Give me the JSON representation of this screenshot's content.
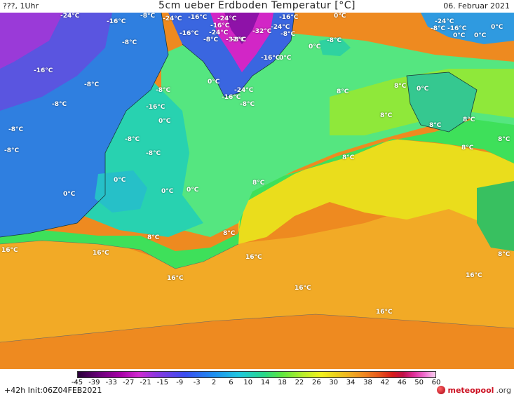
{
  "header": {
    "left": "???, 1Uhr",
    "title": "5cm ueber Erdboden Temperatur [°C]",
    "date": "06. Februar 2021"
  },
  "colors": {
    "water_deep_cold": "#1a56c8",
    "ocean_green": "#2ee070",
    "ocean_yellow": "#e8e020",
    "ocean_orange": "#f0a020",
    "land_purple": "#9030d0",
    "greenland_magenta": "#d020c0"
  },
  "labels": [
    {
      "text": "-24°C"
    },
    {
      "text": "-8°C"
    },
    {
      "text": "-24°C"
    },
    {
      "text": "-16°C"
    },
    {
      "text": "-16°C"
    },
    {
      "text": "-16°C"
    },
    {
      "text": "-24°C"
    },
    {
      "text": "-16°C"
    },
    {
      "text": "-24°C"
    },
    {
      "text": "-16°C"
    },
    {
      "text": "-8°C"
    },
    {
      "text": "-32°C"
    },
    {
      "text": "-8°C"
    },
    {
      "text": "-24°C"
    },
    {
      "text": "-8°C"
    },
    {
      "text": "0°C"
    },
    {
      "text": "-8°C"
    },
    {
      "text": "-32°C"
    },
    {
      "text": "-8°C"
    },
    {
      "text": "0°C"
    },
    {
      "text": "-16°C"
    },
    {
      "text": "0°C"
    },
    {
      "text": "-24°C"
    },
    {
      "text": "-8°C"
    },
    {
      "text": "-16°C"
    },
    {
      "text": "0°C"
    },
    {
      "text": "0°C"
    },
    {
      "text": "0°C"
    },
    {
      "text": "-16°C"
    },
    {
      "text": "-8°C"
    },
    {
      "text": "-8°C"
    },
    {
      "text": "0°C"
    },
    {
      "text": "-24°C"
    },
    {
      "text": "8°C"
    },
    {
      "text": "8°C"
    },
    {
      "text": "-16°C"
    },
    {
      "text": "-8°C"
    },
    {
      "text": "-16°C"
    },
    {
      "text": "8°C"
    },
    {
      "text": "-8°C"
    },
    {
      "text": "0°C"
    },
    {
      "text": "8°C"
    },
    {
      "text": "-8°C"
    },
    {
      "text": "-8°C"
    },
    {
      "text": "8°C"
    },
    {
      "text": "-8°C"
    },
    {
      "text": "8°C"
    },
    {
      "text": "0°C"
    },
    {
      "text": "8°C"
    },
    {
      "text": "-8°C"
    },
    {
      "text": "0°C"
    },
    {
      "text": "0°C"
    },
    {
      "text": "0°C"
    },
    {
      "text": "8°C"
    },
    {
      "text": "0°C"
    },
    {
      "text": "8°C"
    },
    {
      "text": "8°C"
    },
    {
      "text": "8°C"
    },
    {
      "text": "16°C"
    },
    {
      "text": "16°C"
    },
    {
      "text": "16°C"
    },
    {
      "text": "8°C"
    },
    {
      "text": "16°C"
    },
    {
      "text": "16°C"
    },
    {
      "text": "16°C"
    },
    {
      "text": "16°C"
    }
  ],
  "colorbar": {
    "ticks": [
      "-45",
      "-39",
      "-33",
      "-27",
      "-21",
      "-15",
      "-9",
      "-3",
      "2",
      "6",
      "10",
      "14",
      "18",
      "22",
      "26",
      "30",
      "34",
      "38",
      "42",
      "46",
      "50",
      "60"
    ]
  },
  "footer": {
    "run": "+42h  Init:06Z04FEB2021",
    "brand": "meteopool",
    "brand_tld": ".org"
  }
}
